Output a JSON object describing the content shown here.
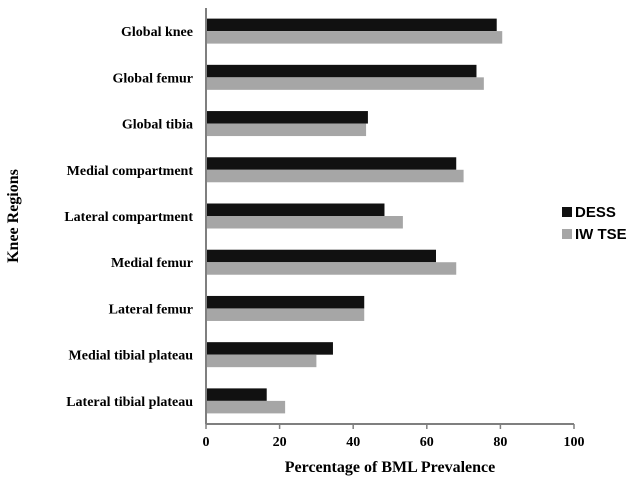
{
  "chart_data": {
    "type": "bar",
    "orientation": "horizontal",
    "categories": [
      "Global knee",
      "Global femur",
      "Global tibia",
      "Medial compartment",
      "Lateral compartment",
      "Medial femur",
      "Lateral femur",
      "Medial tibial plateau",
      "Lateral tibial plateau"
    ],
    "series": [
      {
        "name": "DESS",
        "color": "#111111",
        "values": [
          79,
          73.5,
          44,
          68,
          48.5,
          62.5,
          43,
          34.5,
          16.5
        ]
      },
      {
        "name": "IW TSE",
        "color": "#a6a6a6",
        "values": [
          80.5,
          75.5,
          43.5,
          70,
          53.5,
          68,
          43,
          30,
          21.5
        ]
      }
    ],
    "xlabel": "Percentage of BML Prevalence",
    "ylabel": "Knee Regions",
    "xlim": [
      0,
      100
    ],
    "xticks": [
      0,
      20,
      40,
      60,
      80,
      100
    ],
    "grid": false,
    "legend": "right"
  }
}
